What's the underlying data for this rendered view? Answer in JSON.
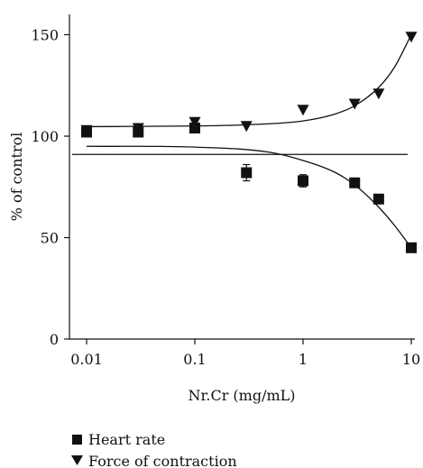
{
  "chart_data": {
    "type": "scatter",
    "xscale": "log",
    "xlim": [
      0.01,
      10
    ],
    "ylim": [
      0,
      160
    ],
    "xlabel": "Nr.Cr (mg/mL)",
    "ylabel": "% of control",
    "xticks": [
      0.01,
      0.1,
      1,
      10
    ],
    "xtick_labels": [
      "0.01",
      "0.1",
      "1",
      "10"
    ],
    "yticks": [
      0,
      50,
      100,
      150
    ],
    "ytick_labels": [
      "0",
      "50",
      "100",
      "150"
    ],
    "legend_position": "bottom-left",
    "reference_line_y": 91,
    "series": [
      {
        "name": "Heart rate",
        "marker": "square",
        "color": "#111111",
        "x": [
          0.01,
          0.03,
          0.1,
          0.3,
          1,
          3,
          5,
          10
        ],
        "y": [
          102,
          102,
          104,
          82,
          78,
          77,
          69,
          45
        ],
        "error": [
          0,
          0,
          0,
          4,
          3,
          0,
          0,
          0
        ],
        "fit": {
          "x": [
            0.01,
            0.1,
            0.5,
            1,
            2,
            3,
            5,
            7,
            10
          ],
          "y": [
            95,
            94.6,
            92,
            88,
            82,
            76,
            65,
            56,
            45
          ]
        }
      },
      {
        "name": "Force of contraction",
        "marker": "triangle-down",
        "color": "#111111",
        "x": [
          0.01,
          0.03,
          0.1,
          0.3,
          1,
          3,
          5,
          10
        ],
        "y": [
          103,
          104,
          107,
          105,
          113,
          116,
          121,
          149
        ],
        "error": [
          0,
          0,
          0,
          0,
          0,
          0,
          0,
          0
        ],
        "fit": {
          "x": [
            0.01,
            0.1,
            0.3,
            1,
            2,
            3,
            5,
            7,
            10
          ],
          "y": [
            104.7,
            105,
            105.6,
            107.5,
            111,
            115,
            124,
            134,
            150
          ]
        }
      }
    ]
  }
}
